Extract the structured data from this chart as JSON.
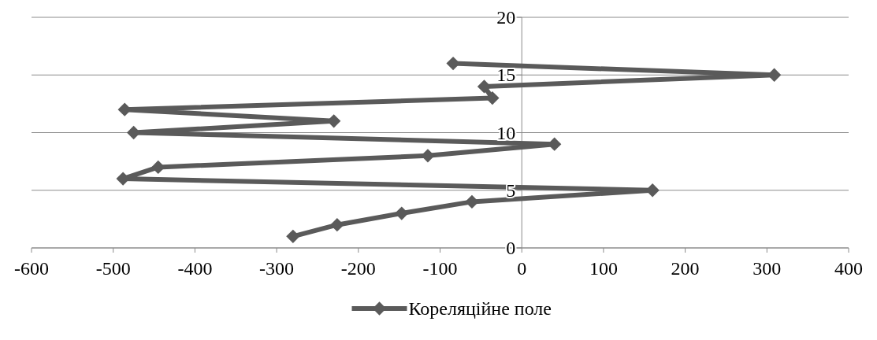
{
  "chart_data": {
    "type": "line",
    "x": [
      -280,
      -226,
      -147,
      -61,
      160,
      -488,
      -445,
      -115,
      40,
      -475,
      -230,
      -486,
      -36,
      -46,
      309,
      -84
    ],
    "series": [
      {
        "name": "Кореляційне поле",
        "color": "#5a5a5a",
        "values": [
          1,
          2,
          3,
          4,
          5,
          6,
          7,
          8,
          9,
          10,
          11,
          12,
          13,
          14,
          15,
          16
        ]
      }
    ],
    "xlim": [
      -600,
      400
    ],
    "xticks": [
      -600,
      -500,
      -400,
      -300,
      -200,
      -100,
      0,
      100,
      200,
      300,
      400
    ],
    "ylim": [
      0,
      20
    ],
    "yticks": [
      0,
      5,
      10,
      15,
      20
    ],
    "grid": "y",
    "legend": "bottom",
    "marker": "diamond",
    "line_style": "solid"
  }
}
